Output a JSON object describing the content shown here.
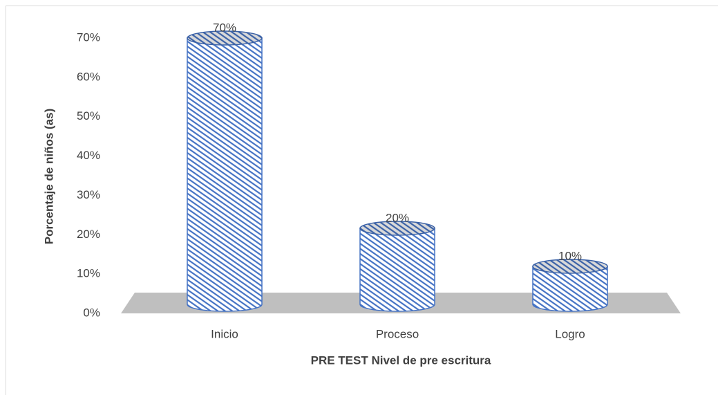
{
  "chart_data": {
    "type": "bar",
    "y_axis_label": "Porcentaje de niños (as)",
    "x_axis_label": "PRE TEST Nivel de pre escritura",
    "categories": [
      "Inicio",
      "Proceso",
      "Logro"
    ],
    "values": [
      70,
      20,
      10
    ],
    "value_labels": [
      "70%",
      "20%",
      "10%"
    ],
    "color": "#4472c4",
    "ylim": [
      0,
      70
    ],
    "yticks": [
      {
        "value": 0,
        "label": "0%"
      },
      {
        "value": 10,
        "label": "10%"
      },
      {
        "value": 20,
        "label": "20%"
      },
      {
        "value": 30,
        "label": "30%"
      },
      {
        "value": 40,
        "label": "40%"
      },
      {
        "value": 50,
        "label": "50%"
      },
      {
        "value": 60,
        "label": "60%"
      },
      {
        "value": 70,
        "label": "70%"
      }
    ],
    "grid": false
  }
}
